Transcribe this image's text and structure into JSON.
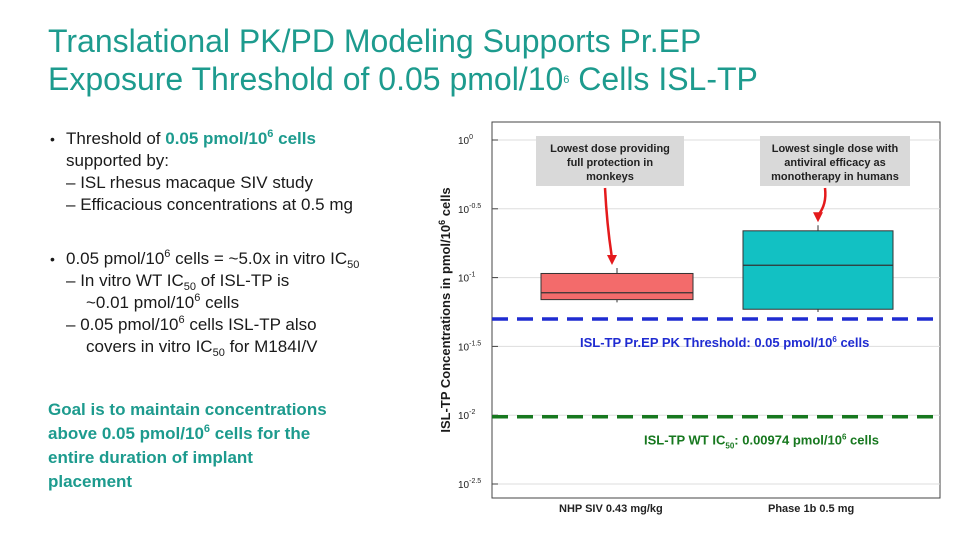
{
  "slide": {
    "title_line1": "Translational PK/PD Modeling Supports Pr.EP",
    "title_line2_pre": "Exposure Threshold of 0.05 pmol/10",
    "title_line2_sup": "6",
    "title_line2_post": " Cells ISL-TP"
  },
  "bullets": {
    "b1_pre": "Threshold of ",
    "b1_bold": "0.05 pmol/10",
    "b1_bold_sup": "6",
    "b1_bold_post": " cells",
    "b1_line2": "supported by:",
    "b1_sub1": "ISL rhesus macaque SIV study",
    "b1_sub2": "Efficacious concentrations at 0.5 mg",
    "b2_pre": "0.05 pmol/10",
    "b2_sup": "6",
    "b2_mid": " cells = ~5.0x in vitro IC",
    "b2_sub": "50",
    "b2_s1_pre": "In vitro WT IC",
    "b2_s1_sub": "50",
    "b2_s1_post": " of ISL-TP is",
    "b2_s1_l2_pre": "~0.01 pmol/10",
    "b2_s1_l2_sup": "6",
    "b2_s1_l2_post": " cells",
    "b2_s2_pre": "0.05 pmol/10",
    "b2_s2_sup": "6",
    "b2_s2_post": " cells ISL-TP also",
    "b2_s2_l2_pre": "covers in vitro IC",
    "b2_s2_l2_sub": "50",
    "b2_s2_l2_post": " for M184I/V"
  },
  "goal": {
    "l1": "Goal is to maintain concentrations",
    "l2_pre": "above 0.05 pmol/10",
    "l2_sup": "6",
    "l2_post": " cells for the",
    "l3": "entire duration of implant",
    "l4": "placement"
  },
  "chart_data": {
    "type": "box",
    "y_scale": "log10",
    "ylim_log10": [
      -2.5,
      0
    ],
    "yticks": [
      {
        "exp": "0",
        "value": 0
      },
      {
        "exp": "-0.5",
        "value": -0.5
      },
      {
        "exp": "-1",
        "value": -1
      },
      {
        "exp": "-1.5",
        "value": -1.5
      },
      {
        "exp": "-2",
        "value": -2
      },
      {
        "exp": "-2.5",
        "value": -2.5
      }
    ],
    "ytick_base": "10",
    "ylabel_pre": "ISL-TP Concentrations  in pmol/10",
    "ylabel_sup": "6",
    "ylabel_post": " cells",
    "categories": [
      "NHP SIV 0.43 mg/kg",
      "Phase 1b 0.5 mg"
    ],
    "boxes": [
      {
        "category": "NHP SIV 0.43 mg/kg",
        "q1": -1.16,
        "median": -1.11,
        "q3": -0.97,
        "whisker_low": -1.18,
        "whisker_high": -0.93,
        "color": "#f36b6b"
      },
      {
        "category": "Phase 1b 0.5 mg",
        "q1": -1.23,
        "median": -0.91,
        "q3": -0.66,
        "whisker_low": -1.25,
        "whisker_high": -0.62,
        "color": "#12c1c3"
      }
    ],
    "reference_lines": [
      {
        "value": 0.05,
        "log10": -1.301,
        "color": "#1f2bd1",
        "label_pre": "ISL-TP Pr.EP PK Threshold: 0.05 pmol/10",
        "label_sup": "6",
        "label_post": " cells"
      },
      {
        "value": 0.00974,
        "log10": -2.011,
        "color": "#17781f",
        "label_pre": "ISL-TP WT IC",
        "label_sub": "50",
        "label_mid": ":  0.00974  pmol/10",
        "label_sup": "6",
        "label_post": " cells"
      }
    ],
    "annotations": [
      {
        "lines": [
          "Lowest dose providing",
          "full protection in",
          "monkeys"
        ],
        "target": "NHP SIV 0.43 mg/kg"
      },
      {
        "lines": [
          "Lowest single dose with",
          "antiviral efficacy as",
          "monotherapy in humans"
        ],
        "target": "Phase 1b 0.5 mg"
      }
    ],
    "colors": {
      "annotation_bg": "#d9d9d9",
      "arrow": "#e41a1c",
      "box_edge": "#333333"
    }
  }
}
